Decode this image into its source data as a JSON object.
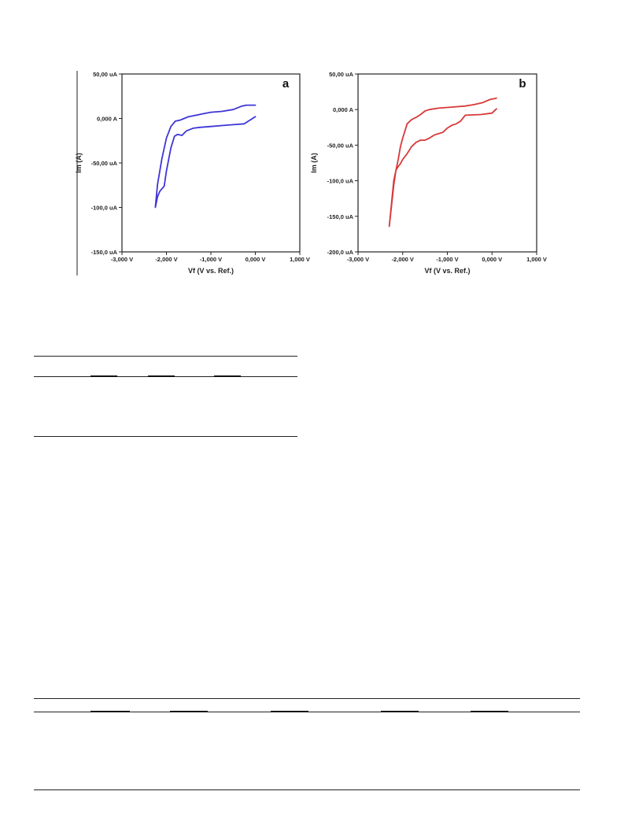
{
  "chart_data": [
    {
      "type": "line",
      "panel_label": "a",
      "xlabel": "Vf (V vs. Ref.)",
      "ylabel": "Im (A)",
      "xlim": [
        -3.0,
        1.0
      ],
      "ylim": [
        -150,
        50
      ],
      "x_ticks": [
        "-3,000 V",
        "-2,000 V",
        "-1,000 V",
        "0,000 V",
        "1,000 V"
      ],
      "y_ticks": [
        "50,00 uA",
        "0,000 A",
        "-50,00 uA",
        "-100,0 uA",
        "-150,0 uA"
      ],
      "grid": false,
      "color": "#3d35d8",
      "series": [
        {
          "x": [
            0.0,
            -0.25,
            -0.5,
            -0.75,
            -1.0,
            -1.25,
            -1.4,
            -1.55,
            -1.65,
            -1.75,
            -1.82,
            -1.9,
            -2.0,
            -2.05,
            -2.1,
            -2.15,
            -2.2,
            -2.25,
            -2.2,
            -2.1,
            -2.0,
            -1.9,
            -1.8,
            -1.7,
            -1.6,
            -1.5,
            -1.4,
            -1.2,
            -1.0,
            -0.75,
            -0.5,
            -0.3,
            -0.2,
            0.0
          ],
          "y": [
            2,
            -6,
            -7,
            -8,
            -9,
            -10,
            -11,
            -14,
            -19,
            -18,
            -20,
            -33,
            -59,
            -76,
            -79,
            -82,
            -88,
            -100,
            -74,
            -45,
            -22,
            -9,
            -3,
            -2,
            0,
            2,
            3,
            5,
            7,
            8,
            10,
            14,
            15,
            15
          ]
        }
      ]
    },
    {
      "type": "line",
      "panel_label": "b",
      "xlabel": "Vf (V vs. Ref.)",
      "ylabel": "Im (A)",
      "xlim": [
        -3.0,
        1.0
      ],
      "ylim": [
        -200,
        50
      ],
      "x_ticks": [
        "-3,000 V",
        "-2,000 V",
        "-1,000 V",
        "0,000 V",
        "1,000 V"
      ],
      "y_ticks": [
        "50,00 uA",
        "0,000 A",
        "-50,00 uA",
        "-100,0 uA",
        "-150,0 uA",
        "-200,0 uA"
      ],
      "grid": false,
      "color": "#d83838",
      "series": [
        {
          "x": [
            0.1,
            0.0,
            -0.25,
            -0.6,
            -0.7,
            -0.8,
            -0.9,
            -1.0,
            -1.1,
            -1.2,
            -1.3,
            -1.4,
            -1.5,
            -1.6,
            -1.7,
            -1.8,
            -1.9,
            -2.0,
            -2.05,
            -2.1,
            -2.15,
            -2.2,
            -2.3,
            -2.2,
            -2.1,
            -2.05,
            -2.0,
            -1.9,
            -1.8,
            -1.7,
            -1.6,
            -1.5,
            -1.4,
            -1.2,
            -1.0,
            -0.8,
            -0.6,
            -0.4,
            -0.2,
            -0.05,
            0.1
          ],
          "y": [
            1,
            -5,
            -7,
            -8,
            -16,
            -20,
            -22,
            -26,
            -32,
            -34,
            -36,
            -40,
            -43,
            -43,
            -46,
            -52,
            -62,
            -70,
            -76,
            -80,
            -85,
            -106,
            -164,
            -100,
            -70,
            -52,
            -40,
            -20,
            -14,
            -11,
            -7,
            -2,
            0,
            2,
            3,
            4,
            5,
            7,
            10,
            14,
            16
          ]
        }
      ]
    }
  ]
}
